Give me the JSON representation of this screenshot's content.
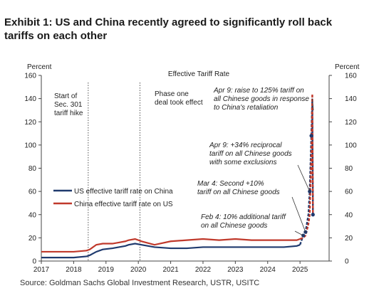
{
  "header": {
    "title": "Exhibit 1: US and China recently agreed to significantly roll back tariffs on each other"
  },
  "source": "Source: Goldman Sachs Global Investment Research, USTR, USITC",
  "chart_data": {
    "type": "line",
    "title": "Effective Tariff Rate",
    "ylabel_left": "Percent",
    "ylabel_right": "Percent",
    "xlim": [
      2017,
      2025.9
    ],
    "ylim": [
      0,
      160
    ],
    "yticks": [
      0,
      20,
      40,
      60,
      80,
      100,
      120,
      140,
      160
    ],
    "xticks": [
      2017,
      2018,
      2019,
      2020,
      2021,
      2022,
      2023,
      2024,
      2025
    ],
    "grid": false,
    "legend_position": "left-middle",
    "colors": {
      "us": "#1f3a6e",
      "china": "#c0392b"
    },
    "series": [
      {
        "name": "US effective tariff rate on China",
        "x": [
          2017.0,
          2017.5,
          2018.0,
          2018.4,
          2018.5,
          2018.7,
          2018.9,
          2019.2,
          2019.4,
          2019.6,
          2019.7,
          2019.9,
          2020.1,
          2020.5,
          2021.0,
          2021.5,
          2022.0,
          2022.5,
          2023.0,
          2023.5,
          2024.0,
          2024.5,
          2024.9,
          2025.0,
          2025.1,
          2025.17,
          2025.2,
          2025.26,
          2025.3,
          2025.35,
          2025.38,
          2025.4
        ],
        "y": [
          3,
          3,
          3,
          4,
          5,
          8,
          10,
          11,
          12,
          13,
          14,
          15,
          14,
          12,
          11,
          11,
          12,
          12,
          12,
          12,
          12,
          12,
          13,
          14,
          22,
          25,
          30,
          40,
          60,
          108,
          140,
          40
        ]
      },
      {
        "name": "China effective tariff rate on US",
        "x": [
          2017.0,
          2017.5,
          2018.0,
          2018.4,
          2018.5,
          2018.7,
          2018.9,
          2019.2,
          2019.4,
          2019.6,
          2019.7,
          2019.9,
          2020.1,
          2020.5,
          2021.0,
          2021.5,
          2022.0,
          2022.5,
          2023.0,
          2023.5,
          2024.0,
          2024.5,
          2024.9,
          2025.0,
          2025.1,
          2025.17,
          2025.2,
          2025.26,
          2025.3,
          2025.35,
          2025.38,
          2025.4
        ],
        "y": [
          8,
          8,
          8,
          9,
          10,
          14,
          15,
          15,
          16,
          17,
          18,
          19,
          17,
          14,
          17,
          18,
          19,
          18,
          19,
          18,
          18,
          18,
          18,
          19,
          20,
          22,
          25,
          32,
          40,
          90,
          144,
          40
        ]
      }
    ],
    "annotations": [
      {
        "text": [
          "Start of",
          "Sec. 301",
          "tariff hike"
        ],
        "style": "normal"
      },
      {
        "text": [
          "Phase one",
          "deal took effect"
        ],
        "style": "normal"
      },
      {
        "text": [
          "Apr 9: raise to 125% tariff on",
          "all Chinese goods in response",
          "to China's retaliation"
        ],
        "style": "italic"
      },
      {
        "text": [
          "Apr 9: +34% reciprocal",
          "tariff on all Chinese goods",
          "with some exclusions"
        ],
        "style": "italic"
      },
      {
        "text": [
          "Mar 4: Second +10%",
          "tariff on all Chinese goods"
        ],
        "style": "italic"
      },
      {
        "text": [
          "Feb 4: 10% additional tariff",
          "on all Chinese goods"
        ],
        "style": "italic"
      }
    ]
  }
}
